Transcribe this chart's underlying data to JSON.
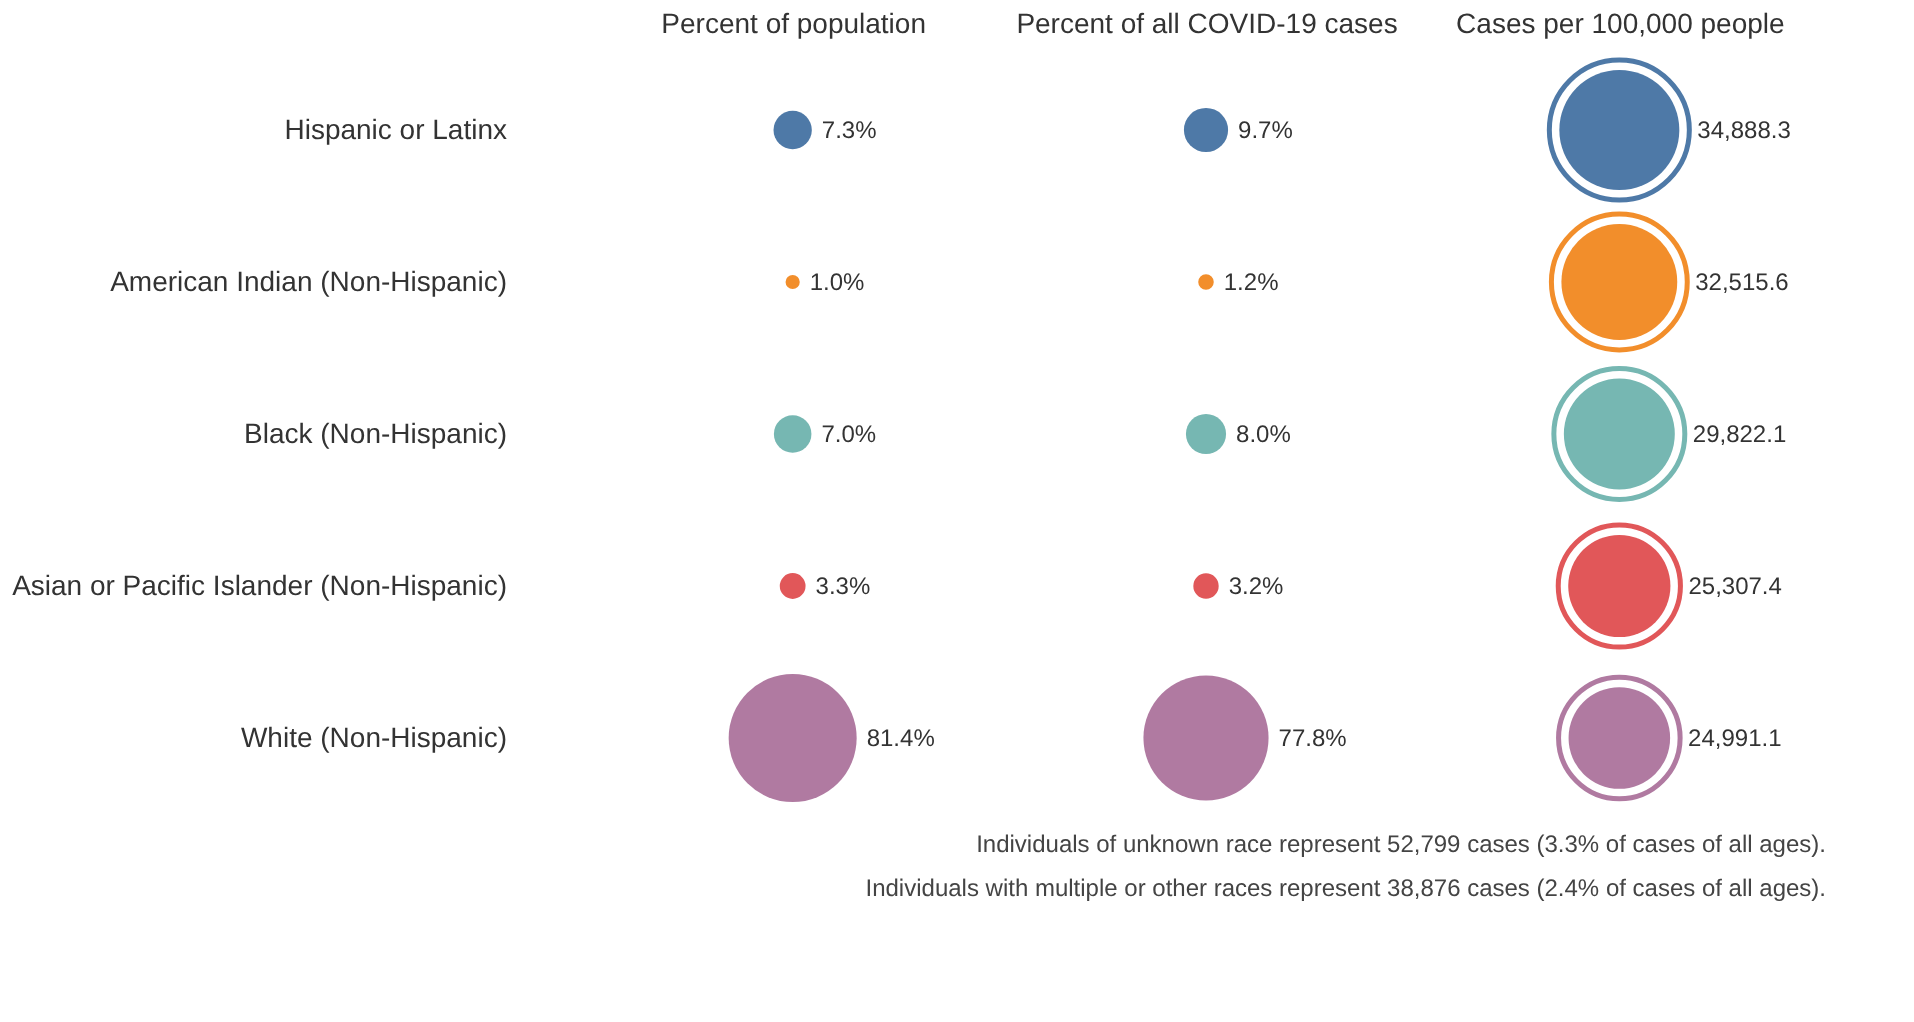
{
  "chart_data": {
    "type": "other",
    "categories": [
      "Hispanic or Latinx",
      "American Indian (Non-Hispanic)",
      "Black (Non-Hispanic)",
      "Asian or Pacific Islander (Non-Hispanic)",
      "White (Non-Hispanic)"
    ],
    "colors": [
      "#4e79a7",
      "#f28e2b",
      "#76b7b2",
      "#e15759",
      "#b07aa1"
    ],
    "series": [
      {
        "name": "Percent of population",
        "values": [
          7.3,
          1.0,
          7.0,
          3.3,
          81.4
        ],
        "value_labels": [
          "7.3%",
          "1.0%",
          "7.0%",
          "3.3%",
          "81.4%"
        ]
      },
      {
        "name": "Percent of all COVID-19 cases",
        "values": [
          9.7,
          1.2,
          8.0,
          3.2,
          77.8
        ],
        "value_labels": [
          "9.7%",
          "1.2%",
          "8.0%",
          "3.2%",
          "77.8%"
        ]
      },
      {
        "name": "Cases per 100,000 people",
        "axis": "y2",
        "values": [
          34888.3,
          32515.6,
          29822.1,
          25307.4,
          24991.1
        ],
        "value_labels": [
          "34,888.3",
          "32,515.6",
          "29,822.1",
          "25,307.4",
          "24,991.1"
        ]
      }
    ],
    "data_labels": true,
    "annotations": [
      "Individuals of unknown race represent 52,799 cases (3.3% of cases of all ages).",
      "Individuals with multiple or other races represent 38,876 cases (2.4% of cases of all ages)."
    ]
  }
}
